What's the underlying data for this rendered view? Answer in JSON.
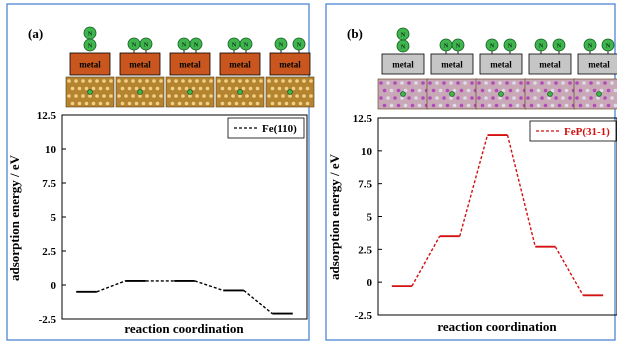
{
  "colors": {
    "frame": "#5b8fd6",
    "metal_a": "#c8561e",
    "metal_b": "#c6c6c6",
    "surface_a": "#b5842f",
    "surface_b": "#c9a9b8",
    "atom_n": "#3fb54e",
    "series_a": "#000000",
    "series_b": "#d41010"
  },
  "chart_data": [
    {
      "type": "line",
      "panel_label": "(a)",
      "ylabel": "adsorption energy / eV",
      "xlabel": "reaction coordination",
      "ylim": [
        -2.5,
        12.5
      ],
      "yticks": [
        "12.5",
        "10",
        "7.5",
        "5",
        "2.5",
        "0",
        "-2.5"
      ],
      "legend_position": "top-right",
      "series": [
        {
          "name": "Fe(110)",
          "values": [
            -0.5,
            0.3,
            0.3,
            -0.4,
            -2.1
          ]
        }
      ],
      "models": [
        {
          "metal_label": "metal",
          "adsorbate": "N",
          "mode": "end-on-vertical"
        },
        {
          "metal_label": "metal",
          "adsorbate": "N",
          "mode": "side-by-side"
        },
        {
          "metal_label": "metal",
          "adsorbate": "N",
          "mode": "side-by-side"
        },
        {
          "metal_label": "metal",
          "adsorbate": "N",
          "mode": "side-by-side"
        },
        {
          "metal_label": "metal",
          "adsorbate": "N",
          "mode": "separated"
        }
      ]
    },
    {
      "type": "line",
      "panel_label": "(b)",
      "ylabel": "adsorption energy / eV",
      "xlabel": "reaction coordination",
      "ylim": [
        -2.5,
        12.5
      ],
      "yticks": [
        "12.5",
        "10",
        "7.5",
        "5",
        "2.5",
        "0",
        "-2.5"
      ],
      "legend_position": "top-right",
      "series": [
        {
          "name": "FeP(31-1)",
          "values": [
            -0.3,
            3.5,
            11.2,
            2.7,
            -1.0
          ]
        }
      ],
      "models": [
        {
          "metal_label": "metal",
          "adsorbate": "N",
          "mode": "end-on-vertical"
        },
        {
          "metal_label": "metal",
          "adsorbate": "N",
          "mode": "side-by-side"
        },
        {
          "metal_label": "metal",
          "adsorbate": "N",
          "mode": "separated"
        },
        {
          "metal_label": "metal",
          "adsorbate": "N",
          "mode": "separated"
        },
        {
          "metal_label": "metal",
          "adsorbate": "N",
          "mode": "separated"
        }
      ]
    }
  ]
}
